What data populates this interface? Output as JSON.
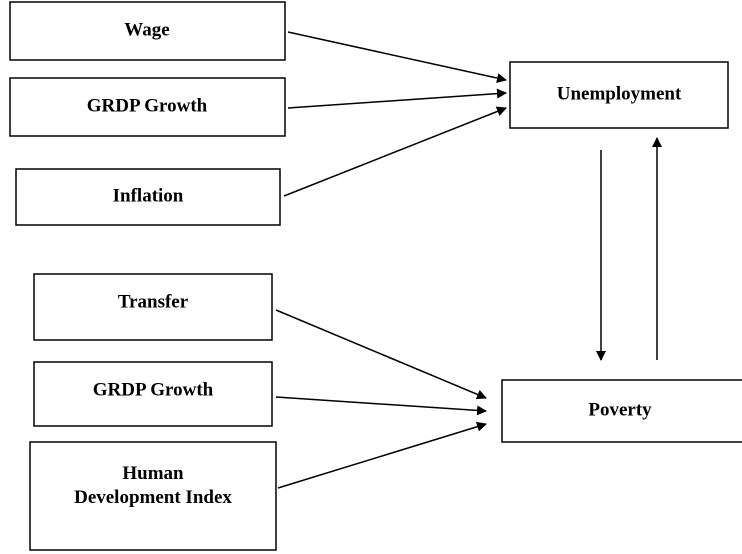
{
  "nodes": [
    {
      "label": "Wage"
    },
    {
      "label": "GRDP Growth"
    },
    {
      "label": "Inflation"
    },
    {
      "label": "Unemployment"
    },
    {
      "label": "Transfer"
    },
    {
      "label": "GRDP Growth"
    },
    {
      "label": "Human Development Index"
    },
    {
      "label": "Poverty"
    }
  ]
}
